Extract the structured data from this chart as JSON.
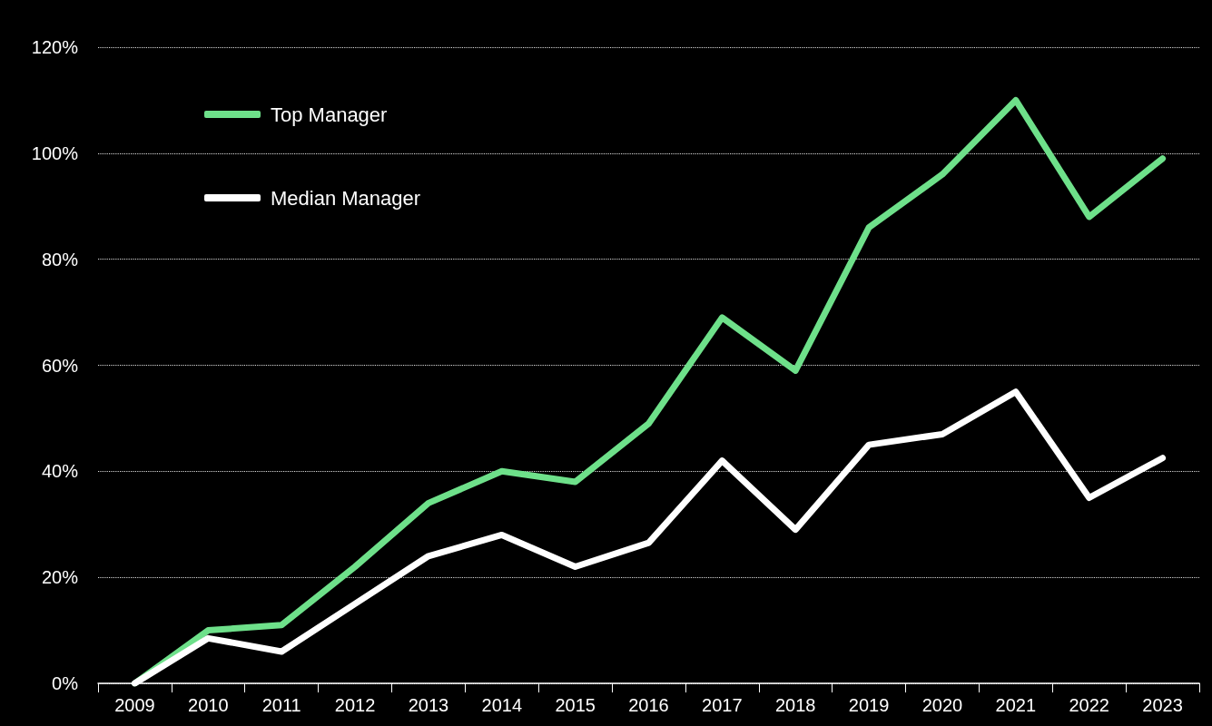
{
  "chart_data": {
    "type": "line",
    "categories": [
      "2009",
      "2010",
      "2011",
      "2012",
      "2013",
      "2014",
      "2015",
      "2016",
      "2017",
      "2018",
      "2019",
      "2020",
      "2021",
      "2022",
      "2023"
    ],
    "series": [
      {
        "name": "Top Manager",
        "color": "#6ee08a",
        "values": [
          0,
          10,
          11,
          22,
          34,
          40,
          38,
          49,
          69,
          59,
          86,
          96,
          110,
          88,
          99
        ]
      },
      {
        "name": "Median Manager",
        "color": "#ffffff",
        "values": [
          0,
          8.5,
          6,
          15,
          24,
          28,
          22,
          26.5,
          42,
          29,
          45,
          47,
          55,
          35,
          42.5
        ]
      }
    ],
    "ylim": [
      0,
      120
    ],
    "yticks": [
      {
        "value": 0,
        "label": "0%"
      },
      {
        "value": 20,
        "label": "20%"
      },
      {
        "value": 40,
        "label": "40%"
      },
      {
        "value": 60,
        "label": "60%"
      },
      {
        "value": 80,
        "label": "80%"
      },
      {
        "value": 100,
        "label": "100%"
      },
      {
        "value": 120,
        "label": "120%"
      }
    ],
    "grid": "y",
    "legend": "top left",
    "marker": "none",
    "line_style": "solid"
  }
}
